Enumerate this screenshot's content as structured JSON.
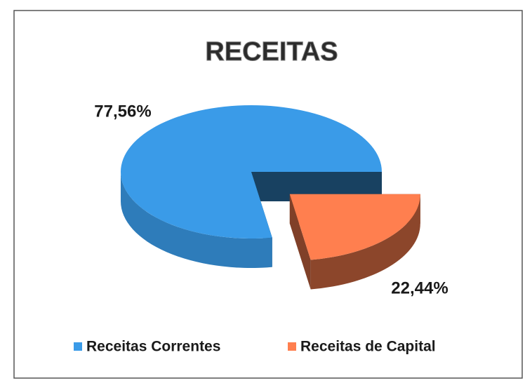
{
  "chart_data": {
    "type": "pie",
    "title": "RECEITAS",
    "categories": [
      "Receitas Correntes",
      "Receitas de Capital"
    ],
    "values": [
      77.56,
      22.44
    ],
    "value_labels": [
      "77,56%",
      "22,44%"
    ],
    "colors": [
      "#3a9be8",
      "#ff7f4f"
    ],
    "legend": "bottom"
  }
}
